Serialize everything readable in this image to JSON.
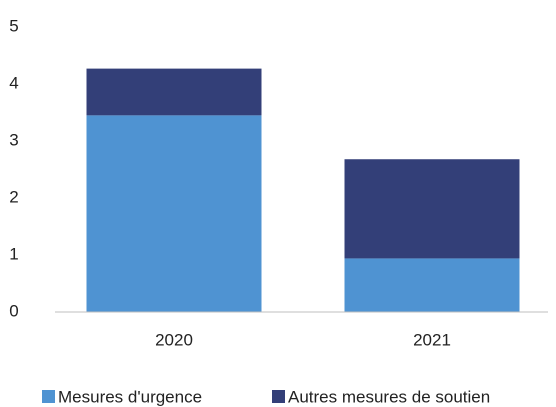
{
  "chart_data": {
    "type": "stacked_bar",
    "categories": [
      "2020",
      "2021"
    ],
    "series": [
      {
        "name": "Mesures d'urgence",
        "color": "#4f93d2",
        "values": [
          3.45,
          0.94
        ]
      },
      {
        "name": "Autres mesures de soutien",
        "color": "#333f78",
        "values": [
          0.82,
          1.74
        ]
      }
    ],
    "ylim": [
      0,
      5
    ],
    "yticks": [
      0,
      1,
      2,
      3,
      4,
      5
    ],
    "grid": false,
    "legend": "bottom"
  }
}
